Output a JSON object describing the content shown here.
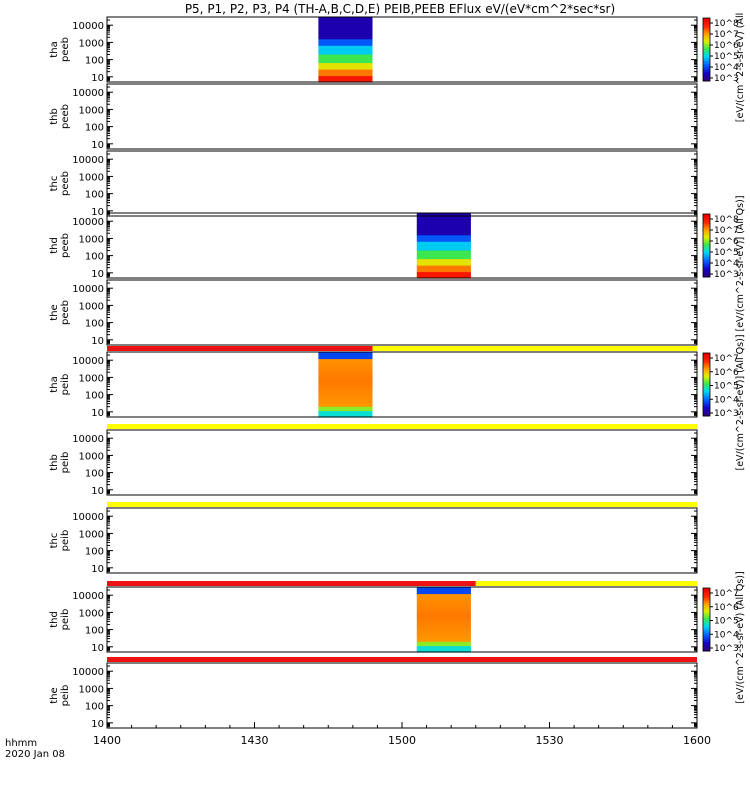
{
  "title": "P5, P1, P2, P3, P4 (TH-A,B,C,D,E) PEIB,PEEB EFlux eV/(eV*cm^2*sec*sr)",
  "colors": {
    "flag_red": "#ee1111",
    "flag_yellow": "#ffff00",
    "axis": "#000000",
    "spec_bg": "#2a0a8c"
  },
  "chart_data": {
    "type": "heatmap",
    "x_axis": {
      "ticks": [
        "1400",
        "1430",
        "1500",
        "1530",
        "1600"
      ],
      "label_format": "hhmm",
      "date": "2020 Jan 08",
      "range_minutes": [
        0,
        120
      ]
    },
    "y_axis": {
      "scale": "log",
      "ticks": [
        "10",
        "100",
        "1000",
        "10000"
      ],
      "range_eV": [
        5,
        30000
      ]
    },
    "panels": [
      {
        "label_line1": "tha",
        "label_line2": "peeb",
        "data_start_min": 43,
        "data_end_min": 54,
        "profile": "electron"
      },
      {
        "label_line1": "thb",
        "label_line2": "peeb"
      },
      {
        "label_line1": "thc",
        "label_line2": "peeb"
      },
      {
        "label_line1": "thd",
        "label_line2": "peeb",
        "data_start_min": 63,
        "data_end_min": 74,
        "profile": "electron"
      },
      {
        "label_line1": "the",
        "label_line2": "peeb"
      },
      {
        "label_line1": "tha",
        "label_line2": "peib",
        "data_start_min": 43,
        "data_end_min": 54,
        "profile": "ion"
      },
      {
        "label_line1": "thb",
        "label_line2": "peib"
      },
      {
        "label_line1": "thc",
        "label_line2": "peib"
      },
      {
        "label_line1": "thd",
        "label_line2": "peib",
        "data_start_min": 63,
        "data_end_min": 74,
        "profile": "ion"
      },
      {
        "label_line1": "the",
        "label_line2": "peib"
      }
    ],
    "flag_bars": [
      {
        "above_panel": 5,
        "red_until_min": 54
      },
      {
        "above_panel": 6,
        "red_until_min": 0
      },
      {
        "above_panel": 7,
        "red_until_min": 0
      },
      {
        "above_panel": 8,
        "red_until_min": 75
      },
      {
        "above_panel": 9,
        "red_until_min": 120
      }
    ],
    "colorbars": [
      {
        "panel": 0,
        "ticks": [
          "10^8",
          "10^7",
          "10^6",
          "10^5",
          "10^4",
          "10^3"
        ],
        "label": "[eV/(cm^2-s-sr-eV) (All"
      },
      {
        "panel": 3,
        "ticks": [
          "10^8",
          "10^7",
          "10^6",
          "10^5",
          "10^4",
          "10^3"
        ],
        "label": "[eV/(cm^2-s-sr-eV)] (All Qs)]"
      },
      {
        "panel": 5,
        "ticks": [
          "10^7",
          "10^6",
          "10^5",
          "10^4",
          "10^3"
        ],
        "label": "[eV/(cm^2-s-sr-eV)] (All Qs)]"
      },
      {
        "panel": 8,
        "ticks": [
          "10^7",
          "10^6",
          "10^5",
          "10^4",
          "10^3"
        ],
        "label": "[eV/(cm^2-s-sr-eV) (All Qs)]"
      }
    ]
  }
}
